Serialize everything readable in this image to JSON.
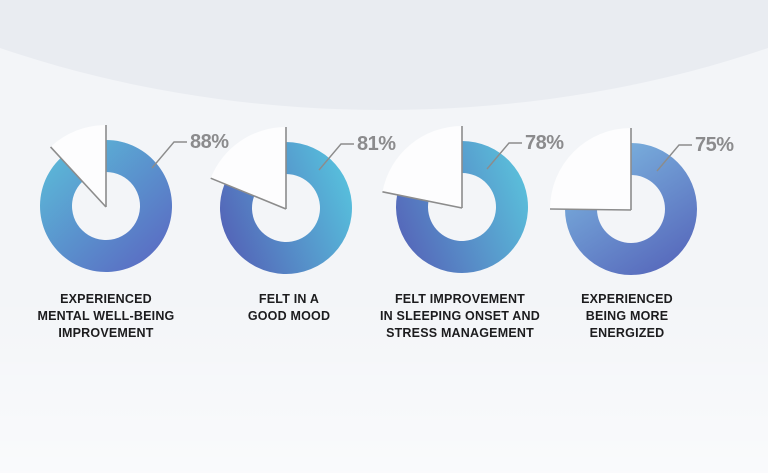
{
  "background": {
    "page_color": "#f3f5f8",
    "top_band_color": "#e9ecf1"
  },
  "styles": {
    "line_color": "#8c8c8c",
    "percent_color": "#8b8b8d",
    "caption_color": "#1c1c1e",
    "wedge_color": "rgba(255,255,255,0.78)"
  },
  "chart_data": [
    {
      "type": "pie",
      "subtype": "donut",
      "value": 88,
      "remainder": 12,
      "display": "88%",
      "caption": "EXPERIENCED\nMENTAL WELL-BEING\nIMPROVEMENT",
      "colors": {
        "start": "#5bbad8",
        "end": "#5a6cc3"
      }
    },
    {
      "type": "pie",
      "subtype": "donut",
      "value": 81,
      "remainder": 19,
      "display": "81%",
      "caption": "FELT IN A\nGOOD MOOD",
      "colors": {
        "start": "#57c1dd",
        "end": "#5463b7"
      }
    },
    {
      "type": "pie",
      "subtype": "donut",
      "value": 78,
      "remainder": 22,
      "display": "78%",
      "caption": "FELT IMPROVEMENT\nIN SLEEPING ONSET AND\nSTRESS MANAGEMENT",
      "colors": {
        "start": "#5ac0db",
        "end": "#5566b9"
      }
    },
    {
      "type": "pie",
      "subtype": "donut",
      "value": 75,
      "remainder": 25,
      "display": "75%",
      "caption": "EXPERIENCED\nBEING MORE\nENERGIZED",
      "colors": {
        "start": "#7db7e0",
        "end": "#5565ba"
      }
    }
  ]
}
